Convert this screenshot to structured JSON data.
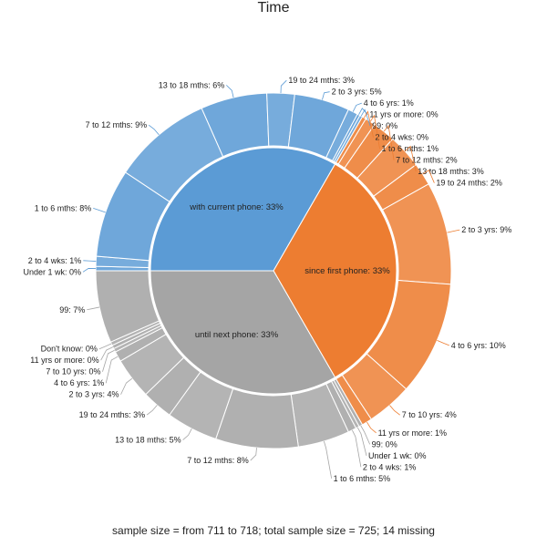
{
  "chart_data": {
    "type": "sunburst",
    "title": "Time",
    "footer": "sample size = from 711 to 718; total sample size = 725; 14 missing",
    "colors": {
      "with current phone": "#5b9bd5",
      "since first phone": "#ed7d31",
      "until next phone": "#a5a5a5"
    },
    "groups": [
      {
        "name": "with current phone",
        "label": "with current phone: 33%",
        "value": 33,
        "children": [
          {
            "label": "Under 1 wk: 0%",
            "value": 0.4
          },
          {
            "label": "2 to 4 wks: 1%",
            "value": 0.9
          },
          {
            "label": "1 to 6 mths: 8%",
            "value": 8
          },
          {
            "label": "7 to 12 mths: 9%",
            "value": 9
          },
          {
            "label": "13 to 18 mths: 6%",
            "value": 6
          },
          {
            "label": "19 to 24 mths: 3%",
            "value": 2.5
          },
          {
            "label": "2 to 3 yrs: 5%",
            "value": 5
          },
          {
            "label": "4 to 6 yrs: 1%",
            "value": 0.9
          },
          {
            "label": "11 yrs or more: 0%",
            "value": 0.25
          },
          {
            "label": "99: 0%",
            "value": 0.25
          }
        ]
      },
      {
        "name": "since first phone",
        "label": "since first phone: 33%",
        "value": 33,
        "children": [
          {
            "label": "2 to 4 wks: 0%",
            "value": 0.35
          },
          {
            "label": "1 to 6 mths: 1%",
            "value": 0.9
          },
          {
            "label": "7 to 12 mths: 2%",
            "value": 2
          },
          {
            "label": "13 to 18 mths: 3%",
            "value": 3
          },
          {
            "label": "19 to 24 mths: 2%",
            "value": 2
          },
          {
            "label": "2 to 3 yrs: 9%",
            "value": 9
          },
          {
            "label": "4 to 6 yrs: 10%",
            "value": 10
          },
          {
            "label": "7 to 10 yrs: 4%",
            "value": 4
          },
          {
            "label": "11 yrs or more: 1%",
            "value": 0.9
          }
        ]
      },
      {
        "name": "until next phone",
        "label": "until next phone: 33%",
        "value": 33,
        "children": [
          {
            "label": "99: 0%",
            "value": 0.35
          },
          {
            "label": "Under 1 wk: 0%",
            "value": 0.35
          },
          {
            "label": "2 to 4 wks: 1%",
            "value": 0.8
          },
          {
            "label": "1 to 6 mths: 5%",
            "value": 5
          },
          {
            "label": "7 to 12 mths: 8%",
            "value": 8
          },
          {
            "label": "13 to 18 mths: 5%",
            "value": 5
          },
          {
            "label": "19 to 24 mths: 3%",
            "value": 3
          },
          {
            "label": "2 to 3 yrs: 4%",
            "value": 4
          },
          {
            "label": "4 to 6 yrs: 1%",
            "value": 1
          },
          {
            "label": "7 to 10 yrs: 0%",
            "value": 0.35
          },
          {
            "label": "11 yrs or more: 0%",
            "value": 0.35
          },
          {
            "label": "Don't know: 0%",
            "value": 0.35
          },
          {
            "label": "99: 7%",
            "value": 7
          }
        ]
      }
    ]
  }
}
